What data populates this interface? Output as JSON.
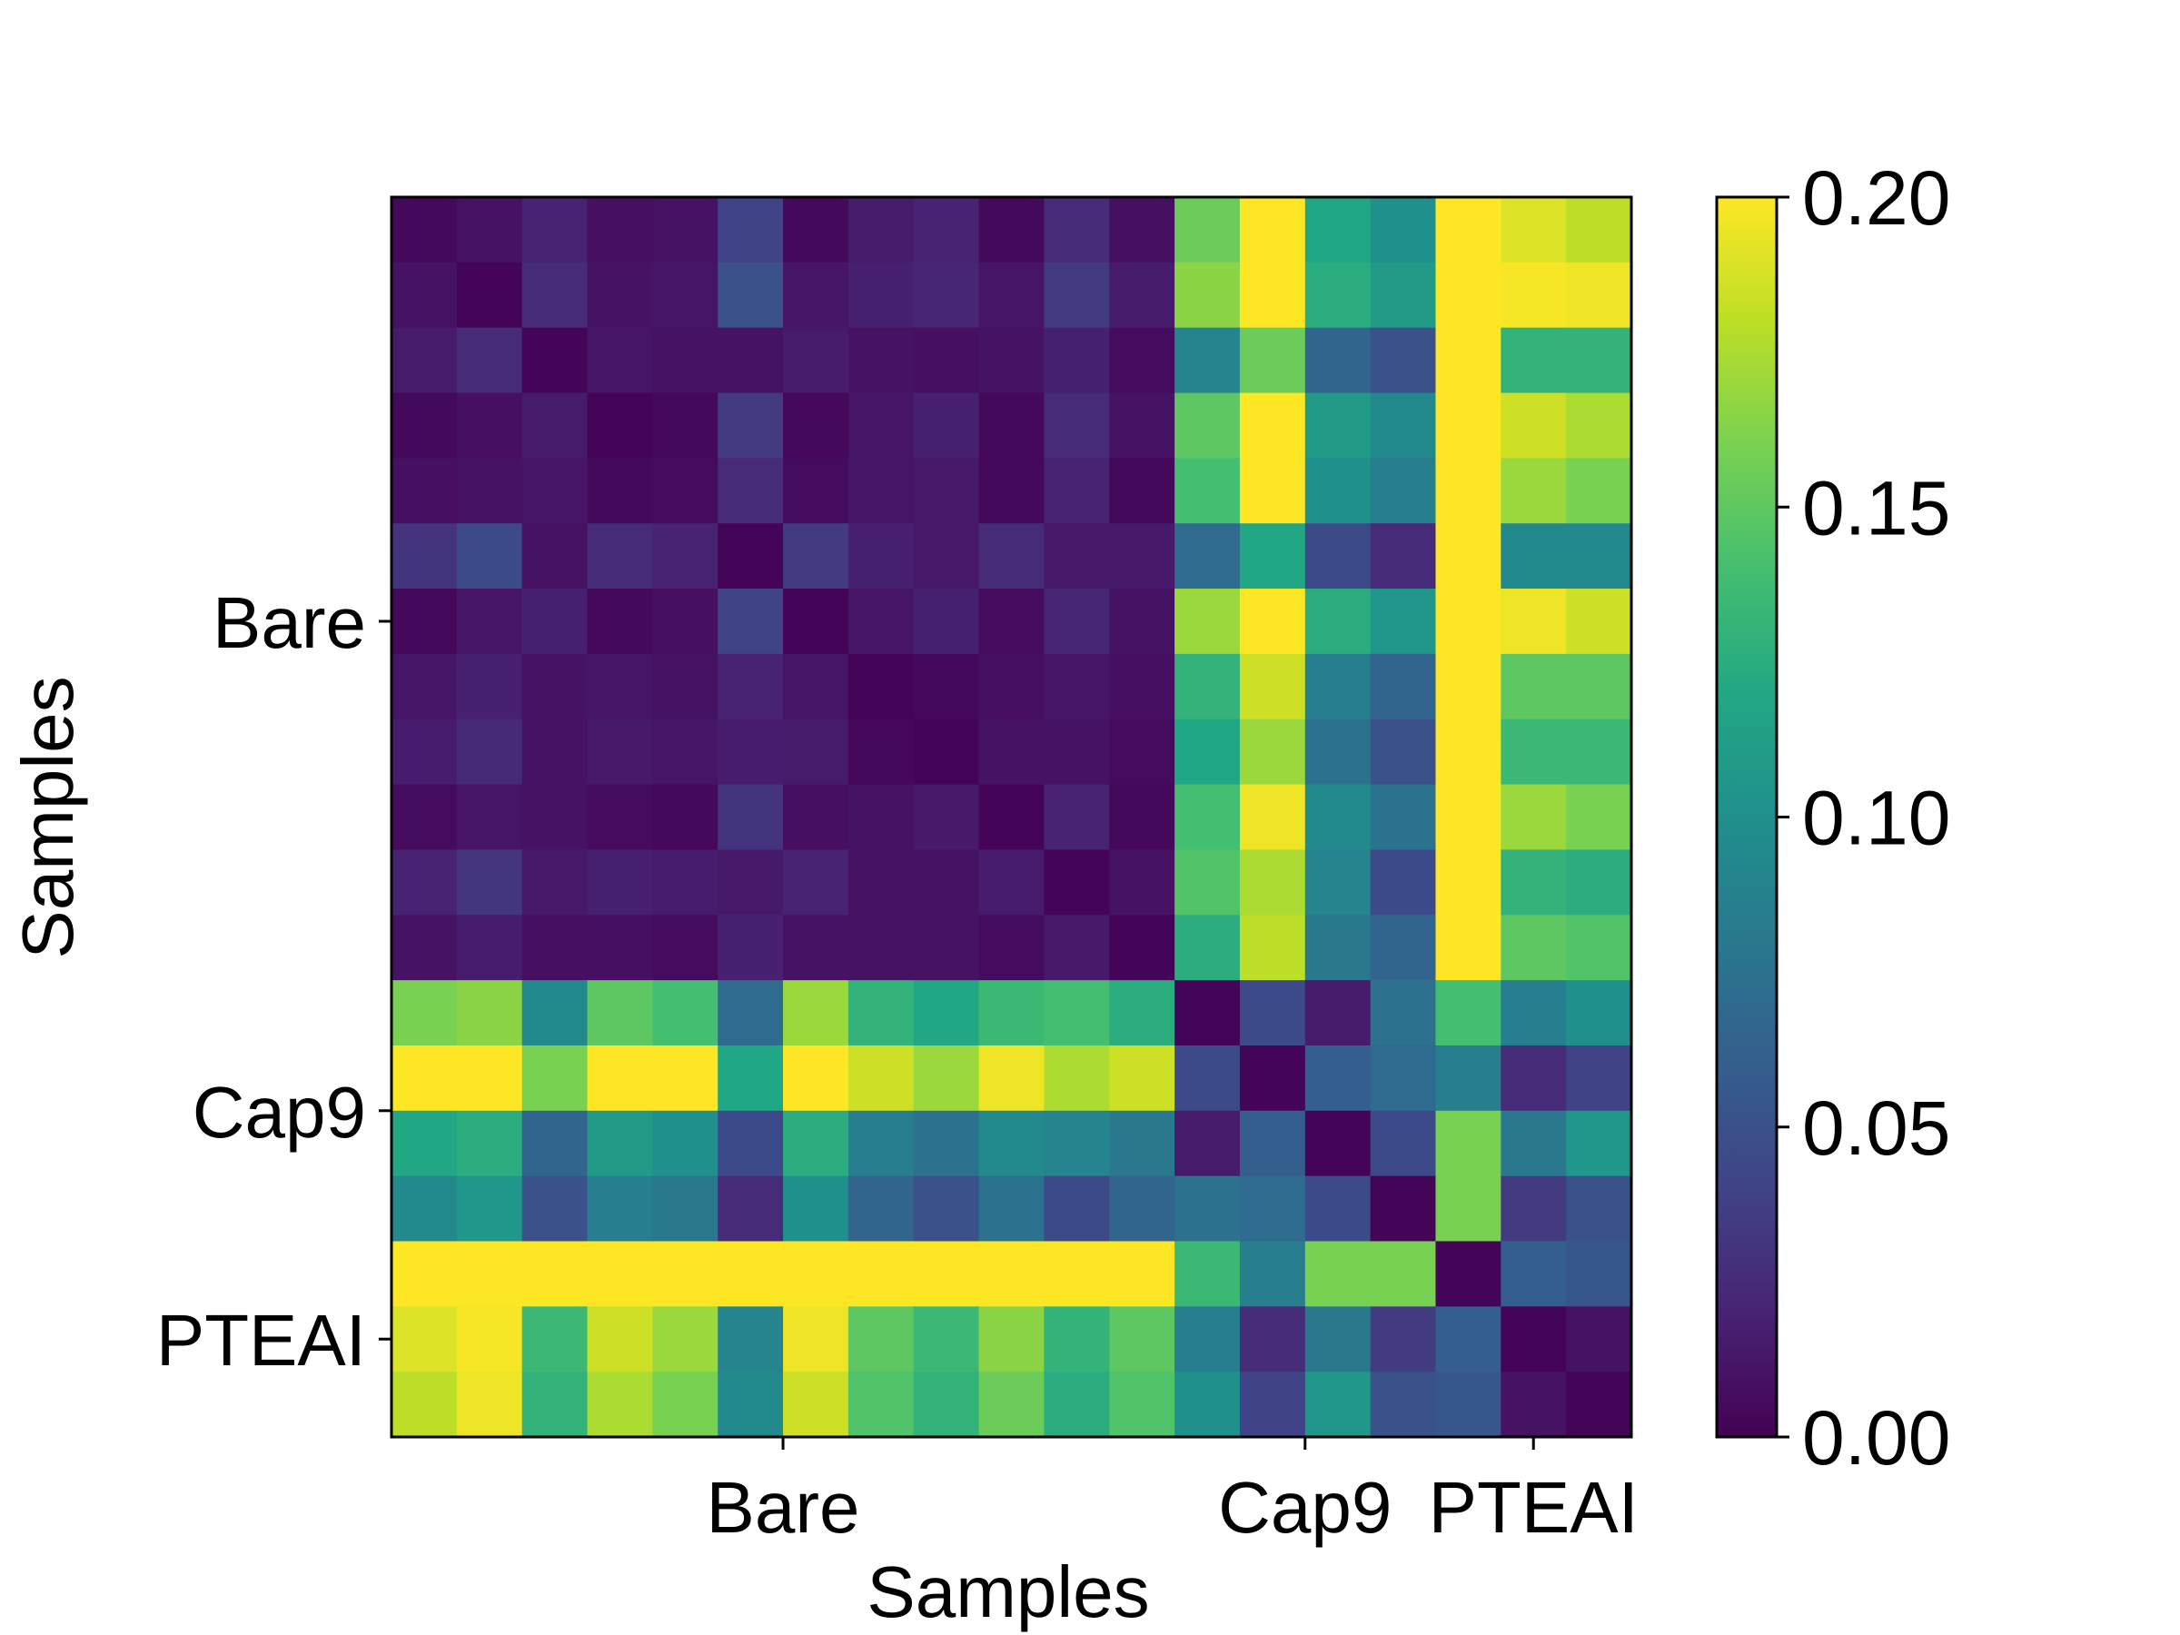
{
  "chart_data": {
    "type": "heatmap",
    "xlabel": "Samples",
    "ylabel": "Samples",
    "x_tick_labels": [
      {
        "label": "Bare",
        "col": 5.5
      },
      {
        "label": "Cap9",
        "col": 13.5
      },
      {
        "label": "PTEAI",
        "col": 17
      }
    ],
    "y_tick_labels": [
      {
        "label": "Bare",
        "row": 6
      },
      {
        "label": "Cap9",
        "row": 13.5
      },
      {
        "label": "PTEAI",
        "row": 17
      }
    ],
    "colorbar": {
      "min": 0.0,
      "max": 0.2,
      "ticks": [
        "0.00",
        "0.05",
        "0.10",
        "0.15",
        "0.20"
      ],
      "tick_values": [
        0.0,
        0.05,
        0.1,
        0.15,
        0.2
      ],
      "colormap": "viridis"
    },
    "rows": 19,
    "cols": 19,
    "values": [
      [
        0.005,
        0.01,
        0.02,
        0.008,
        0.01,
        0.04,
        0.005,
        0.015,
        0.02,
        0.005,
        0.025,
        0.008,
        0.155,
        0.2,
        0.12,
        0.1,
        0.2,
        0.19,
        0.18
      ],
      [
        0.01,
        0.002,
        0.025,
        0.01,
        0.012,
        0.05,
        0.012,
        0.018,
        0.022,
        0.012,
        0.035,
        0.015,
        0.165,
        0.2,
        0.125,
        0.11,
        0.2,
        0.198,
        0.195
      ],
      [
        0.015,
        0.025,
        0.002,
        0.012,
        0.01,
        0.01,
        0.015,
        0.01,
        0.008,
        0.01,
        0.018,
        0.006,
        0.09,
        0.155,
        0.065,
        0.05,
        0.2,
        0.13,
        0.13
      ],
      [
        0.005,
        0.008,
        0.015,
        0.002,
        0.005,
        0.035,
        0.004,
        0.012,
        0.018,
        0.004,
        0.025,
        0.01,
        0.15,
        0.2,
        0.11,
        0.095,
        0.2,
        0.185,
        0.175
      ],
      [
        0.008,
        0.01,
        0.012,
        0.005,
        0.006,
        0.025,
        0.006,
        0.012,
        0.014,
        0.004,
        0.02,
        0.004,
        0.14,
        0.2,
        0.1,
        0.085,
        0.2,
        0.17,
        0.16
      ],
      [
        0.03,
        0.045,
        0.01,
        0.025,
        0.02,
        0.002,
        0.035,
        0.018,
        0.014,
        0.025,
        0.014,
        0.014,
        0.07,
        0.12,
        0.045,
        0.025,
        0.2,
        0.095,
        0.095
      ],
      [
        0.005,
        0.012,
        0.018,
        0.005,
        0.008,
        0.04,
        0.002,
        0.012,
        0.018,
        0.006,
        0.022,
        0.01,
        0.17,
        0.2,
        0.125,
        0.105,
        0.2,
        0.195,
        0.185
      ],
      [
        0.012,
        0.018,
        0.01,
        0.012,
        0.01,
        0.02,
        0.012,
        0.002,
        0.004,
        0.008,
        0.012,
        0.008,
        0.13,
        0.185,
        0.085,
        0.065,
        0.2,
        0.15,
        0.15
      ],
      [
        0.016,
        0.024,
        0.01,
        0.014,
        0.012,
        0.016,
        0.015,
        0.004,
        0.002,
        0.01,
        0.01,
        0.006,
        0.12,
        0.17,
        0.075,
        0.05,
        0.2,
        0.135,
        0.135
      ],
      [
        0.006,
        0.012,
        0.01,
        0.006,
        0.004,
        0.03,
        0.008,
        0.01,
        0.014,
        0.002,
        0.02,
        0.004,
        0.14,
        0.195,
        0.095,
        0.075,
        0.2,
        0.17,
        0.16
      ],
      [
        0.02,
        0.032,
        0.014,
        0.018,
        0.016,
        0.014,
        0.02,
        0.01,
        0.01,
        0.016,
        0.002,
        0.01,
        0.145,
        0.175,
        0.09,
        0.045,
        0.2,
        0.13,
        0.125
      ],
      [
        0.01,
        0.016,
        0.008,
        0.008,
        0.006,
        0.018,
        0.01,
        0.01,
        0.01,
        0.006,
        0.014,
        0.002,
        0.125,
        0.18,
        0.08,
        0.065,
        0.2,
        0.15,
        0.145
      ],
      [
        0.16,
        0.165,
        0.095,
        0.15,
        0.14,
        0.07,
        0.17,
        0.13,
        0.12,
        0.135,
        0.14,
        0.125,
        0.002,
        0.045,
        0.015,
        0.075,
        0.14,
        0.085,
        0.1
      ],
      [
        0.2,
        0.2,
        0.16,
        0.2,
        0.2,
        0.12,
        0.2,
        0.185,
        0.17,
        0.195,
        0.175,
        0.185,
        0.045,
        0.002,
        0.06,
        0.07,
        0.085,
        0.025,
        0.04
      ],
      [
        0.12,
        0.125,
        0.065,
        0.11,
        0.1,
        0.045,
        0.125,
        0.085,
        0.075,
        0.095,
        0.09,
        0.08,
        0.015,
        0.06,
        0.002,
        0.045,
        0.16,
        0.08,
        0.105
      ],
      [
        0.095,
        0.105,
        0.05,
        0.085,
        0.08,
        0.025,
        0.1,
        0.065,
        0.05,
        0.075,
        0.045,
        0.065,
        0.075,
        0.07,
        0.045,
        0.002,
        0.16,
        0.035,
        0.05
      ],
      [
        0.2,
        0.2,
        0.2,
        0.2,
        0.2,
        0.2,
        0.2,
        0.2,
        0.2,
        0.2,
        0.2,
        0.2,
        0.135,
        0.085,
        0.16,
        0.16,
        0.002,
        0.06,
        0.055
      ],
      [
        0.19,
        0.198,
        0.135,
        0.185,
        0.17,
        0.09,
        0.195,
        0.15,
        0.135,
        0.165,
        0.13,
        0.15,
        0.085,
        0.025,
        0.08,
        0.035,
        0.06,
        0.002,
        0.01
      ],
      [
        0.18,
        0.195,
        0.13,
        0.175,
        0.16,
        0.095,
        0.185,
        0.145,
        0.13,
        0.155,
        0.125,
        0.145,
        0.1,
        0.04,
        0.105,
        0.05,
        0.055,
        0.01,
        0.002
      ]
    ]
  }
}
